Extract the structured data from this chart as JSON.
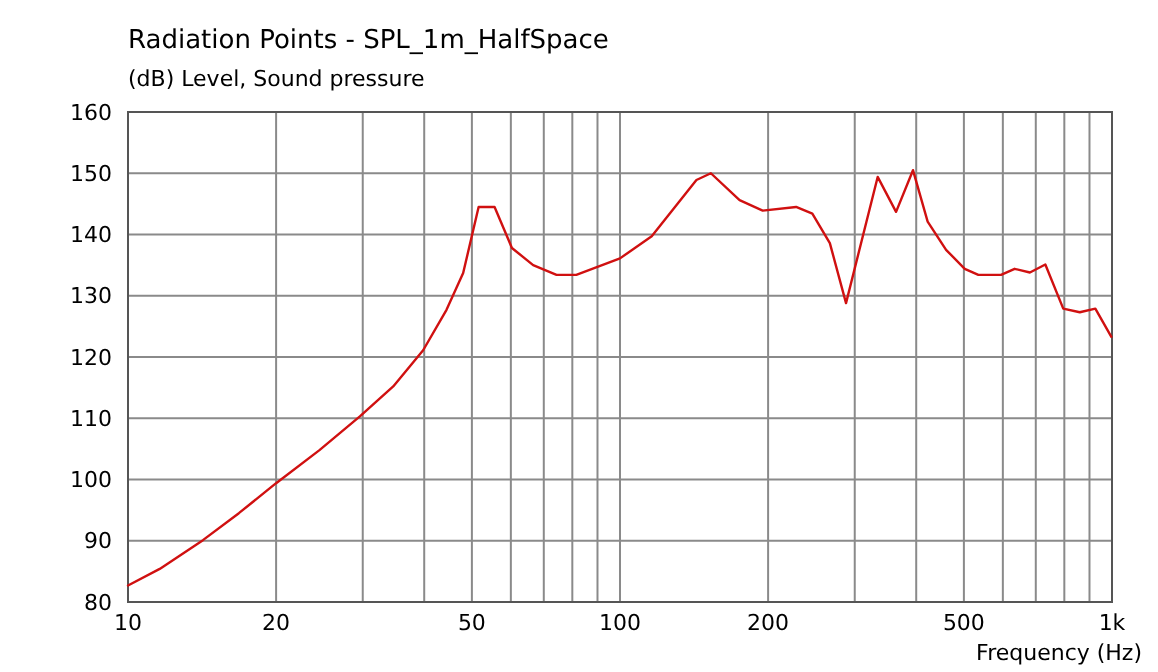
{
  "chart_data": {
    "type": "line",
    "title": "Radiation Points - SPL_1m_HalfSpace",
    "subtitle": "(dB)  Level, Sound pressure",
    "xlabel": "Frequency  (Hz)",
    "log": "x",
    "grid": true,
    "marker": "none",
    "line_style": "solid",
    "xlim": [
      10,
      1000
    ],
    "ylim": [
      80,
      160
    ],
    "xticks": [
      10,
      20,
      {
        "value": 30,
        "label": null
      },
      {
        "value": 40,
        "label": null
      },
      50,
      {
        "value": 60,
        "label": null
      },
      {
        "value": 70,
        "label": null
      },
      {
        "value": 80,
        "label": null
      },
      {
        "value": 90,
        "label": null
      },
      100,
      200,
      {
        "value": 300,
        "label": null
      },
      {
        "value": 400,
        "label": null
      },
      500,
      {
        "value": 600,
        "label": null
      },
      {
        "value": 700,
        "label": null
      },
      {
        "value": 800,
        "label": null
      },
      {
        "value": 900,
        "label": null
      },
      {
        "value": 1000,
        "label": "1k"
      }
    ],
    "yticks": [
      80,
      90,
      100,
      110,
      120,
      130,
      140,
      150,
      160
    ],
    "series": [
      {
        "color": "#d01010",
        "x": [
          10,
          11.6,
          14.2,
          16.8,
          20,
          24.5,
          29.6,
          34.6,
          39.8,
          44.4,
          48,
          51.6,
          55.6,
          60.3,
          66.6,
          74.3,
          81.5,
          100,
          116,
          143,
          153,
          175,
          195,
          228,
          246,
          267,
          288,
          334,
          364,
          394,
          422,
          460,
          502,
          535,
          595,
          634,
          681,
          732,
          796,
          860,
          925,
          997
        ],
        "values": [
          82.7,
          85.4,
          90.1,
          94.5,
          99.4,
          104.8,
          110.3,
          115.2,
          121.1,
          127.7,
          133.7,
          144.5,
          144.5,
          137.8,
          135.0,
          133.4,
          133.4,
          136.1,
          139.7,
          148.9,
          150.0,
          145.6,
          143.9,
          144.5,
          143.4,
          138.6,
          128.8,
          149.4,
          143.7,
          150.5,
          142.1,
          137.5,
          134.4,
          133.4,
          133.4,
          134.4,
          133.8,
          135.1,
          127.9,
          127.3,
          127.9,
          123.3
        ]
      }
    ]
  }
}
